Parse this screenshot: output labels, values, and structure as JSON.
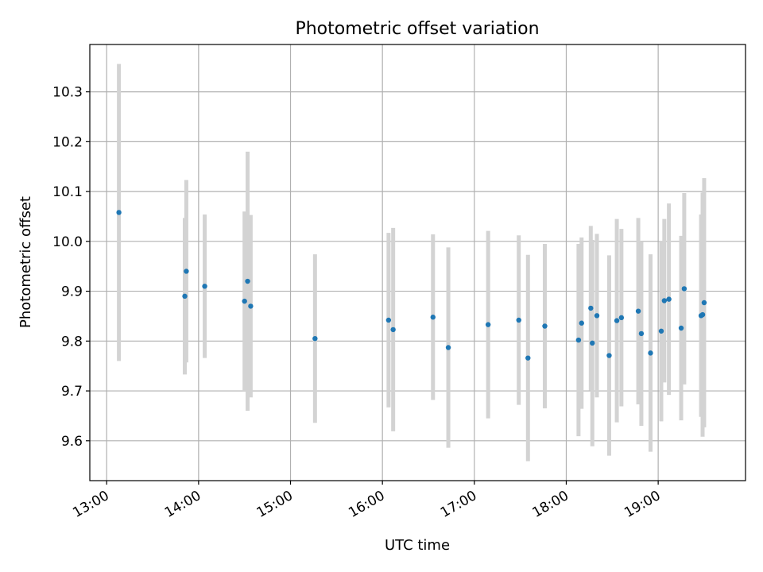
{
  "chart_data": {
    "type": "scatter",
    "title": "Photometric offset variation",
    "xlabel": "UTC time",
    "ylabel": "Photometric offset",
    "x_ticks": [
      "13:00",
      "14:00",
      "15:00",
      "16:00",
      "17:00",
      "18:00",
      "19:00"
    ],
    "y_ticks": [
      "9.6",
      "9.7",
      "9.8",
      "9.9",
      "10.0",
      "10.1",
      "10.2",
      "10.3"
    ],
    "xlim": [
      "12:49",
      "19:57"
    ],
    "ylim": [
      9.52,
      10.395
    ],
    "grid": true,
    "point_color": "#1f77b4",
    "errorbar_color": "#d3d3d3",
    "points": [
      {
        "x": "13:08",
        "y": 10.058,
        "err": 0.298
      },
      {
        "x": "13:51",
        "y": 9.89,
        "err": 0.157
      },
      {
        "x": "13:52",
        "y": 9.94,
        "err": 0.183
      },
      {
        "x": "14:04",
        "y": 9.91,
        "err": 0.144
      },
      {
        "x": "14:30",
        "y": 9.88,
        "err": 0.18
      },
      {
        "x": "14:32",
        "y": 9.92,
        "err": 0.26
      },
      {
        "x": "14:34",
        "y": 9.87,
        "err": 0.183
      },
      {
        "x": "15:16",
        "y": 9.805,
        "err": 0.169
      },
      {
        "x": "16:04",
        "y": 9.842,
        "err": 0.175
      },
      {
        "x": "16:07",
        "y": 9.823,
        "err": 0.204
      },
      {
        "x": "16:33",
        "y": 9.848,
        "err": 0.166
      },
      {
        "x": "16:43",
        "y": 9.787,
        "err": 0.201
      },
      {
        "x": "17:09",
        "y": 9.833,
        "err": 0.188
      },
      {
        "x": "17:29",
        "y": 9.842,
        "err": 0.17
      },
      {
        "x": "17:35",
        "y": 9.766,
        "err": 0.207
      },
      {
        "x": "17:46",
        "y": 9.83,
        "err": 0.165
      },
      {
        "x": "18:08",
        "y": 9.802,
        "err": 0.193
      },
      {
        "x": "18:10",
        "y": 9.836,
        "err": 0.172
      },
      {
        "x": "18:16",
        "y": 9.866,
        "err": 0.165
      },
      {
        "x": "18:17",
        "y": 9.796,
        "err": 0.207
      },
      {
        "x": "18:20",
        "y": 9.851,
        "err": 0.164
      },
      {
        "x": "18:28",
        "y": 9.771,
        "err": 0.201
      },
      {
        "x": "18:33",
        "y": 9.841,
        "err": 0.204
      },
      {
        "x": "18:36",
        "y": 9.847,
        "err": 0.178
      },
      {
        "x": "18:47",
        "y": 9.86,
        "err": 0.187
      },
      {
        "x": "18:49",
        "y": 9.815,
        "err": 0.185
      },
      {
        "x": "18:55",
        "y": 9.776,
        "err": 0.198
      },
      {
        "x": "19:02",
        "y": 9.82,
        "err": 0.181
      },
      {
        "x": "19:04",
        "y": 9.881,
        "err": 0.164
      },
      {
        "x": "19:07",
        "y": 9.884,
        "err": 0.192
      },
      {
        "x": "19:15",
        "y": 9.826,
        "err": 0.185
      },
      {
        "x": "19:17",
        "y": 9.905,
        "err": 0.192
      },
      {
        "x": "19:28",
        "y": 9.851,
        "err": 0.203
      },
      {
        "x": "19:29",
        "y": 9.853,
        "err": 0.245
      },
      {
        "x": "19:30",
        "y": 9.877,
        "err": 0.25
      }
    ]
  }
}
